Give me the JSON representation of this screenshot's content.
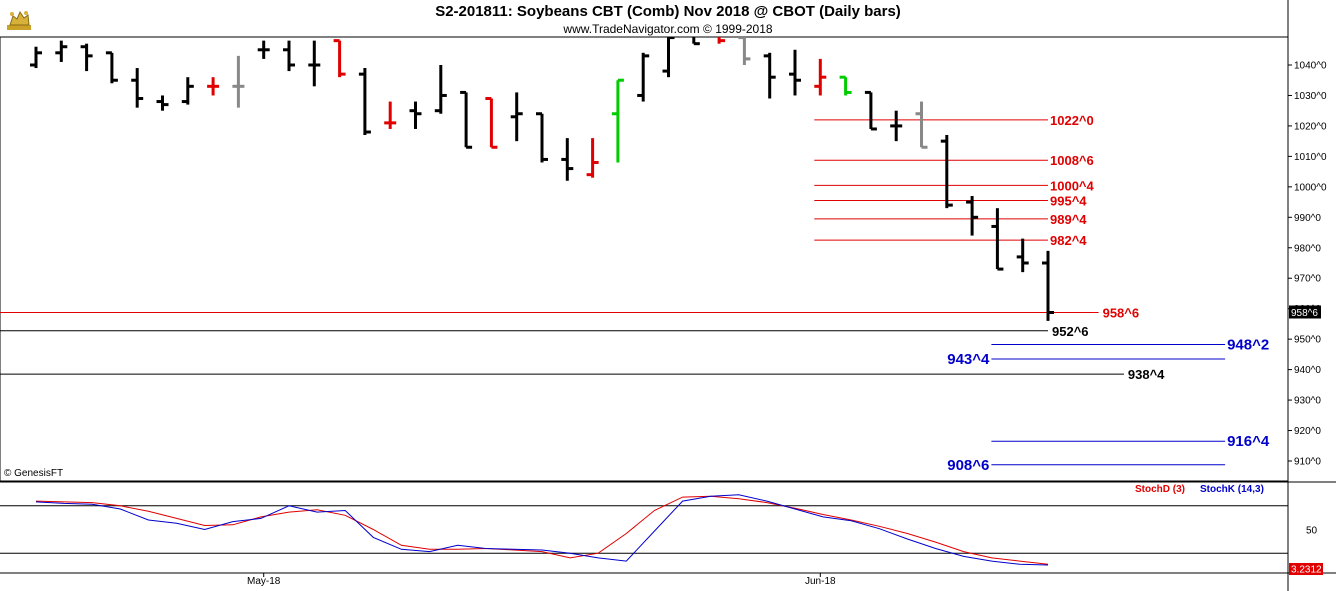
{
  "header": {
    "title": "S2-201811:  Soybeans CBT (Comb) Nov 2018 @ CBOT  (Daily bars)",
    "subtitle": "www.TradeNavigator.com © 1999-2018",
    "copyright": "© GenesisFT"
  },
  "colors": {
    "up_bar": "#000000",
    "down_bar_red": "#e00000",
    "green_bar": "#00cc00",
    "gray_bar": "#888888",
    "red_level": "#e00000",
    "black_level": "#000000",
    "blue_level": "#0000cc",
    "stoch_d": "#e00000",
    "stoch_k": "#0000cc"
  },
  "chart_data": [
    {
      "type": "ohlc",
      "title": "S2-201811:  Soybeans CBT (Comb) Nov 2018 @ CBOT  (Daily bars)",
      "ylim": [
        903,
        1050
      ],
      "y_ticks": [
        "1040^0",
        "1030^0",
        "1020^0",
        "1010^0",
        "1000^0",
        "990^0",
        "980^0",
        "970^0",
        "960^0",
        "950^0",
        "940^0",
        "930^0",
        "920^0",
        "910^0"
      ],
      "y_tick_values": [
        1040,
        1030,
        1020,
        1010,
        1000,
        990,
        980,
        970,
        960,
        950,
        940,
        930,
        920,
        910
      ],
      "x_ticks": [
        "May-18",
        "Jun-18"
      ],
      "x_tick_bar_index": [
        9,
        31
      ],
      "last_price_label": "958^6",
      "bars": [
        {
          "o": 1040,
          "h": 1046,
          "l": 1039,
          "c": 1044,
          "color": "black"
        },
        {
          "o": 1044,
          "h": 1048,
          "l": 1041,
          "c": 1046,
          "color": "black"
        },
        {
          "o": 1046,
          "h": 1047,
          "l": 1038,
          "c": 1043,
          "color": "black"
        },
        {
          "o": 1044,
          "h": 1044,
          "l": 1034,
          "c": 1035,
          "color": "black"
        },
        {
          "o": 1035,
          "h": 1039,
          "l": 1026,
          "c": 1029,
          "color": "black"
        },
        {
          "o": 1028,
          "h": 1030,
          "l": 1025,
          "c": 1027,
          "color": "black"
        },
        {
          "o": 1028,
          "h": 1036,
          "l": 1027,
          "c": 1033,
          "color": "black"
        },
        {
          "o": 1033,
          "h": 1036,
          "l": 1030,
          "c": 1033,
          "color": "red"
        },
        {
          "o": 1033,
          "h": 1043,
          "l": 1026,
          "c": 1033,
          "color": "gray"
        },
        {
          "o": 1045,
          "h": 1048,
          "l": 1042,
          "c": 1045,
          "color": "black"
        },
        {
          "o": 1045,
          "h": 1048,
          "l": 1038,
          "c": 1040,
          "color": "black"
        },
        {
          "o": 1040,
          "h": 1048,
          "l": 1033,
          "c": 1040,
          "color": "black"
        },
        {
          "o": 1048,
          "h": 1048,
          "l": 1036,
          "c": 1037,
          "color": "red"
        },
        {
          "o": 1037,
          "h": 1039,
          "l": 1017,
          "c": 1018,
          "color": "black"
        },
        {
          "o": 1021,
          "h": 1028,
          "l": 1019,
          "c": 1021,
          "color": "red"
        },
        {
          "o": 1025,
          "h": 1028,
          "l": 1019,
          "c": 1024,
          "color": "black"
        },
        {
          "o": 1025,
          "h": 1040,
          "l": 1024,
          "c": 1030,
          "color": "black"
        },
        {
          "o": 1031,
          "h": 1031,
          "l": 1013,
          "c": 1013,
          "color": "black"
        },
        {
          "o": 1029,
          "h": 1029,
          "l": 1013,
          "c": 1013,
          "color": "red"
        },
        {
          "o": 1023,
          "h": 1031,
          "l": 1015,
          "c": 1024,
          "color": "black"
        },
        {
          "o": 1024,
          "h": 1024,
          "l": 1008,
          "c": 1009,
          "color": "black"
        },
        {
          "o": 1009,
          "h": 1016,
          "l": 1002,
          "c": 1006,
          "color": "black"
        },
        {
          "o": 1004,
          "h": 1016,
          "l": 1003,
          "c": 1008,
          "color": "red"
        },
        {
          "o": 1024,
          "h": 1035,
          "l": 1008,
          "c": 1035,
          "color": "green"
        },
        {
          "o": 1030,
          "h": 1044,
          "l": 1028,
          "c": 1043,
          "color": "black"
        },
        {
          "o": 1038,
          "h": 1050,
          "l": 1036,
          "c": 1049,
          "color": "black"
        },
        {
          "o": 1051,
          "h": 1051,
          "l": 1047,
          "c": 1047,
          "color": "black"
        },
        {
          "o": 1051,
          "h": 1051,
          "l": 1047,
          "c": 1048,
          "color": "red"
        },
        {
          "o": 1049,
          "h": 1050,
          "l": 1040,
          "c": 1042,
          "color": "gray"
        },
        {
          "o": 1043,
          "h": 1044,
          "l": 1029,
          "c": 1036,
          "color": "black"
        },
        {
          "o": 1037,
          "h": 1045,
          "l": 1030,
          "c": 1035,
          "color": "black"
        },
        {
          "o": 1033,
          "h": 1042,
          "l": 1030,
          "c": 1036,
          "color": "red"
        },
        {
          "o": 1036,
          "h": 1036,
          "l": 1030,
          "c": 1031,
          "color": "green"
        },
        {
          "o": 1031,
          "h": 1031,
          "l": 1019,
          "c": 1019,
          "color": "black"
        },
        {
          "o": 1020,
          "h": 1025,
          "l": 1015,
          "c": 1020,
          "color": "black"
        },
        {
          "o": 1024,
          "h": 1028,
          "l": 1013,
          "c": 1013,
          "color": "gray"
        },
        {
          "o": 1015,
          "h": 1017,
          "l": 993,
          "c": 994,
          "color": "black"
        },
        {
          "o": 995,
          "h": 997,
          "l": 984,
          "c": 990,
          "color": "black"
        },
        {
          "o": 987,
          "h": 993,
          "l": 973,
          "c": 973,
          "color": "black"
        },
        {
          "o": 977,
          "h": 983,
          "l": 972,
          "c": 975,
          "color": "black"
        },
        {
          "o": 975,
          "h": 979,
          "l": 956,
          "c": 958.75,
          "color": "black"
        }
      ],
      "levels": [
        {
          "label": "1022^0",
          "value": 1022,
          "color": "red",
          "from_bar": 31,
          "to_bar": 40
        },
        {
          "label": "1008^6",
          "value": 1008.75,
          "color": "red",
          "from_bar": 31,
          "to_bar": 40
        },
        {
          "label": "1000^4",
          "value": 1000.5,
          "color": "red",
          "from_bar": 31,
          "to_bar": 40
        },
        {
          "label": "995^4",
          "value": 995.5,
          "color": "red",
          "from_bar": 31,
          "to_bar": 40
        },
        {
          "label": "989^4",
          "value": 989.5,
          "color": "red",
          "from_bar": 31,
          "to_bar": 40
        },
        {
          "label": "982^4",
          "value": 982.5,
          "color": "red",
          "from_bar": 31,
          "to_bar": 40
        },
        {
          "label": "958^6",
          "value": 958.75,
          "color": "red",
          "from_bar": -1,
          "to_bar": 42
        },
        {
          "label": "952^6",
          "value": 952.75,
          "color": "black",
          "from_bar": -1,
          "to_bar": 40
        },
        {
          "label": "948^2",
          "value": 948.25,
          "color": "blue",
          "from_bar": 38,
          "to_bar": 47
        },
        {
          "label": "943^4",
          "value": 943.5,
          "color": "blue",
          "from_bar": 38,
          "to_bar": 47
        },
        {
          "label": "938^4",
          "value": 938.5,
          "color": "black",
          "from_bar": -1,
          "to_bar": 43
        },
        {
          "label": "916^4",
          "value": 916.5,
          "color": "blue",
          "from_bar": 38,
          "to_bar": 47
        },
        {
          "label": "908^6",
          "value": 908.75,
          "color": "blue",
          "from_bar": 38,
          "to_bar": 47
        }
      ]
    },
    {
      "type": "line",
      "title": "",
      "ylim": [
        0,
        100
      ],
      "y_ticks": [
        "50"
      ],
      "y_tick_values": [
        50
      ],
      "hlines": [
        20,
        80
      ],
      "last_value_label": "3.2312",
      "legend": [
        "StochD (3)",
        "StochK (14,3)"
      ],
      "series": [
        {
          "name": "StochD (3)",
          "color": "red",
          "values": [
            86,
            85,
            84,
            80,
            73,
            64,
            55,
            56,
            66,
            72,
            75,
            68,
            50,
            30,
            25,
            25,
            26,
            24,
            22,
            14,
            20,
            45,
            74,
            91,
            92,
            89,
            84,
            77,
            69,
            62,
            54,
            45,
            34,
            22,
            14,
            10,
            6
          ]
        },
        {
          "name": "StochK (14,3)",
          "color": "blue",
          "values": [
            85,
            83,
            82,
            76,
            62,
            58,
            50,
            60,
            64,
            80,
            72,
            74,
            40,
            25,
            22,
            30,
            26,
            25,
            24,
            20,
            14,
            10,
            48,
            86,
            92,
            94,
            86,
            76,
            66,
            61,
            51,
            38,
            26,
            16,
            10,
            6,
            5
          ]
        }
      ]
    }
  ]
}
